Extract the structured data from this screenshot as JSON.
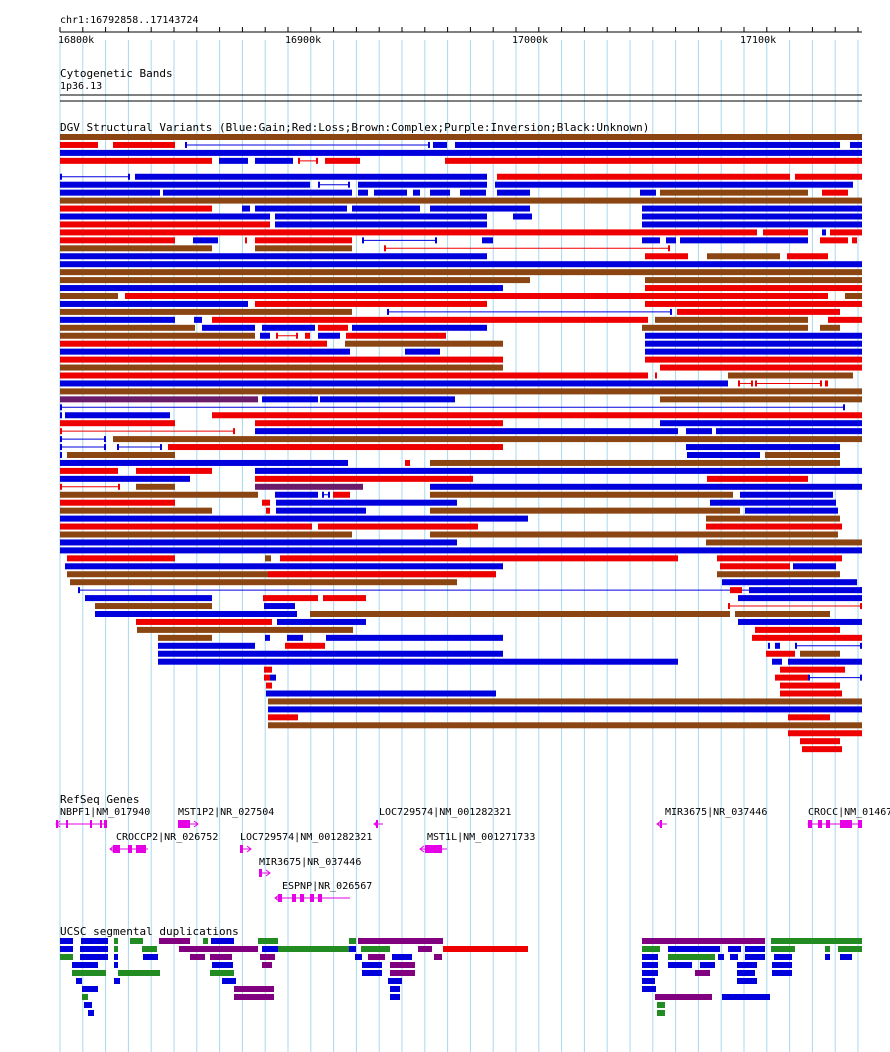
{
  "view": {
    "position_label": "chr1:16792858..17143724",
    "scale_ticks": [
      "16800k",
      "16900k",
      "17000k",
      "17100k"
    ]
  },
  "tracks": {
    "cytobands": {
      "title": "Cytogenetic Bands",
      "band": "1p36.13"
    },
    "dgv": {
      "title": "DGV Structural Variants (Blue:Gain;Red:Loss;Brown:Complex;Purple:Inversion;Black:Unknown)"
    },
    "refseq": {
      "title": "RefSeq Genes",
      "genes": [
        "NBPF1|NM_017940",
        "MST1P2|NR_027504",
        "LOC729574|NM_001282321",
        "MIR3675|NR_037446",
        "CROCC|NM_01467",
        "CROCCP2|NR_026752",
        "LOC729574|NM_001282321",
        "MST1L|NM_001271733",
        "MIR3675|NR_037446",
        "ESPNP|NR_026567"
      ]
    },
    "segdups": {
      "title": "UCSC segmental duplications"
    }
  },
  "colors": {
    "gain": "#0000dd",
    "loss": "#ee0000",
    "complex": "#8b4513",
    "inversion": "#6a1b6a",
    "gene": "#e600e6",
    "grid": "#a8d8f0",
    "segdup_green": "#228b22",
    "segdup_purple": "#800080"
  }
}
